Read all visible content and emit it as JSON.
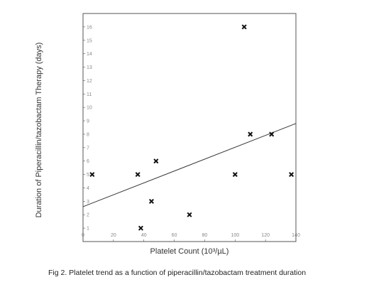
{
  "chart_data": {
    "type": "scatter",
    "title": "",
    "xlabel": "Platelet Count (10³/µL)",
    "ylabel": "Duration of Piperacillin/tazobactam Therapy (days)",
    "xlim": [
      0,
      140
    ],
    "ylim": [
      0,
      17
    ],
    "x_ticks": [
      0,
      20,
      40,
      60,
      80,
      100,
      120,
      140
    ],
    "y_ticks": [
      1,
      2,
      3,
      4,
      5,
      6,
      7,
      8,
      9,
      10,
      11,
      12,
      13,
      14,
      15,
      16
    ],
    "grid": false,
    "marker": "x",
    "points": [
      {
        "x": 6,
        "y": 5
      },
      {
        "x": 36,
        "y": 5
      },
      {
        "x": 38,
        "y": 1
      },
      {
        "x": 45,
        "y": 3
      },
      {
        "x": 48,
        "y": 6
      },
      {
        "x": 70,
        "y": 2
      },
      {
        "x": 100,
        "y": 5
      },
      {
        "x": 106,
        "y": 16
      },
      {
        "x": 110,
        "y": 8
      },
      {
        "x": 124,
        "y": 8
      },
      {
        "x": 137,
        "y": 5
      }
    ],
    "trendline": {
      "x": [
        0,
        140
      ],
      "y": [
        2.6,
        8.8
      ]
    }
  },
  "caption": "Fig 2. Platelet trend as a function of piperacillin/tazobactam treatment duration",
  "colors": {
    "marker": "#111111",
    "axis": "#555555",
    "tick_text": "#888888"
  }
}
